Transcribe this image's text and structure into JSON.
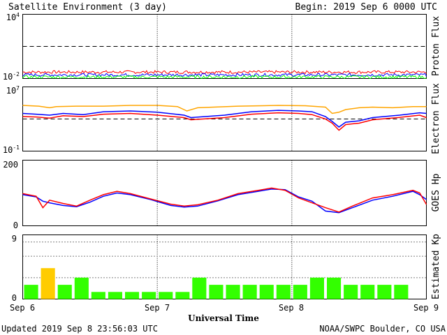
{
  "header": {
    "title": "Satellite Environment (3 day)",
    "begin": "Begin:  2019 Sep 6 0000 UTC"
  },
  "footer": {
    "updated": "Updated 2019 Sep  8 23:56:03 UTC",
    "credit": "NOAA/SWPC Boulder, CO USA",
    "xlabel": "Universal Time"
  },
  "x_ticks": [
    "Sep 6",
    "Sep 7",
    "Sep 8",
    "Sep 9"
  ],
  "colors": {
    "red": "#ff0000",
    "blue": "#0000ff",
    "green": "#00ff00",
    "orange": "#ffa500",
    "kp_green": "#33ff00",
    "kp_yellow": "#ffcc00"
  },
  "chart_data": [
    {
      "type": "line",
      "panel": "proton",
      "ylabel": "Proton Flux",
      "ytick_labels": [
        {
          "base": "10",
          "exp": "4"
        },
        {
          "base": "10",
          "exp": "-2"
        }
      ],
      "yscale": "log",
      "ylim": [
        0.01,
        10000
      ],
      "x_unit": "days since 2019 Sep 6 0000 UTC",
      "xlim": [
        0,
        3
      ],
      "threshold": 10,
      "series": [
        {
          "color": "red",
          "level": 0.04
        },
        {
          "color": "blue",
          "level": 0.022
        },
        {
          "color": "green",
          "level": 0.014
        }
      ]
    },
    {
      "type": "line",
      "panel": "electron",
      "ylabel": "Electron Flux",
      "ytick_labels": [
        {
          "base": "10",
          "exp": "7"
        },
        {
          "base": "10",
          "exp": "-1"
        }
      ],
      "yscale": "log",
      "ylim": [
        0.1,
        10000000
      ],
      "xlim": [
        0,
        3
      ],
      "threshold": 1000,
      "series": [
        {
          "color": "orange",
          "x": [
            0,
            0.12,
            0.2,
            0.25,
            0.4,
            0.6,
            0.8,
            1.0,
            1.15,
            1.22,
            1.3,
            1.6,
            1.9,
            2.1,
            2.25,
            2.3,
            2.35,
            2.4,
            2.5,
            2.6,
            2.75,
            2.9,
            3.0
          ],
          "y": [
            50000,
            40000,
            25000,
            35000,
            40000,
            40000,
            50000,
            50000,
            35000,
            10000,
            25000,
            40000,
            50000,
            45000,
            30000,
            5000,
            7000,
            15000,
            25000,
            30000,
            25000,
            35000,
            35000
          ]
        },
        {
          "color": "blue",
          "x": [
            0,
            0.1,
            0.2,
            0.3,
            0.45,
            0.6,
            0.8,
            1.0,
            1.2,
            1.25,
            1.5,
            1.7,
            1.9,
            2.05,
            2.15,
            2.25,
            2.3,
            2.35,
            2.4,
            2.5,
            2.6,
            2.8,
            2.95,
            3.0
          ],
          "y": [
            5000,
            4000,
            3000,
            5000,
            3500,
            8000,
            10000,
            7000,
            3000,
            1500,
            3000,
            8000,
            12000,
            10000,
            8000,
            2000,
            500,
            100,
            400,
            600,
            1500,
            3000,
            6000,
            5000
          ]
        },
        {
          "color": "red",
          "x": [
            0,
            0.1,
            0.2,
            0.3,
            0.45,
            0.6,
            0.8,
            1.0,
            1.2,
            1.25,
            1.5,
            1.7,
            1.9,
            2.05,
            2.15,
            2.25,
            2.3,
            2.35,
            2.4,
            2.5,
            2.6,
            2.8,
            2.95,
            3.0
          ],
          "y": [
            2000,
            1800,
            1300,
            2500,
            2000,
            4000,
            5000,
            3000,
            1500,
            800,
            1500,
            4000,
            6000,
            5000,
            3500,
            1000,
            300,
            40,
            200,
            300,
            800,
            1600,
            3000,
            1500
          ]
        }
      ]
    },
    {
      "type": "line",
      "panel": "goes_hp",
      "ylabel": "GOES Hp",
      "ytick_labels": [
        "200",
        "0"
      ],
      "yscale": "linear",
      "ylim": [
        0,
        200
      ],
      "xlim": [
        0,
        3
      ],
      "series": [
        {
          "color": "blue",
          "x": [
            0,
            0.1,
            0.15,
            0.2,
            0.3,
            0.4,
            0.5,
            0.6,
            0.7,
            0.8,
            0.95,
            1.1,
            1.2,
            1.3,
            1.45,
            1.6,
            1.75,
            1.85,
            1.95,
            2.05,
            2.15,
            2.25,
            2.35,
            2.45,
            2.6,
            2.75,
            2.9,
            2.95,
            3.0
          ],
          "y": [
            95,
            88,
            75,
            70,
            62,
            58,
            72,
            90,
            100,
            95,
            80,
            62,
            57,
            60,
            76,
            95,
            105,
            112,
            110,
            88,
            75,
            45,
            40,
            55,
            78,
            90,
            105,
            95,
            80
          ]
        },
        {
          "color": "red",
          "x": [
            0,
            0.1,
            0.15,
            0.2,
            0.3,
            0.4,
            0.5,
            0.6,
            0.7,
            0.8,
            0.95,
            1.1,
            1.2,
            1.3,
            1.45,
            1.6,
            1.75,
            1.85,
            1.95,
            2.05,
            2.15,
            2.25,
            2.35,
            2.45,
            2.6,
            2.75,
            2.9,
            2.95,
            3.0
          ],
          "y": [
            98,
            90,
            55,
            78,
            68,
            60,
            78,
            95,
            105,
            98,
            82,
            66,
            60,
            64,
            78,
            98,
            108,
            115,
            108,
            85,
            70,
            55,
            42,
            60,
            85,
            95,
            108,
            100,
            65
          ]
        }
      ]
    },
    {
      "type": "bar",
      "panel": "kp",
      "ylabel": "Estimated Kp",
      "ytick_labels": [
        "9",
        "0"
      ],
      "ylim": [
        0,
        9
      ],
      "xlim": [
        0,
        3
      ],
      "bar_width_days": 0.125,
      "values": [
        2,
        4.33,
        2,
        3,
        1,
        1,
        1,
        1,
        1,
        1,
        3,
        2,
        2,
        2,
        2,
        2,
        2,
        3,
        3,
        2,
        2,
        2,
        2,
        0
      ],
      "yellow_threshold": 4
    }
  ]
}
